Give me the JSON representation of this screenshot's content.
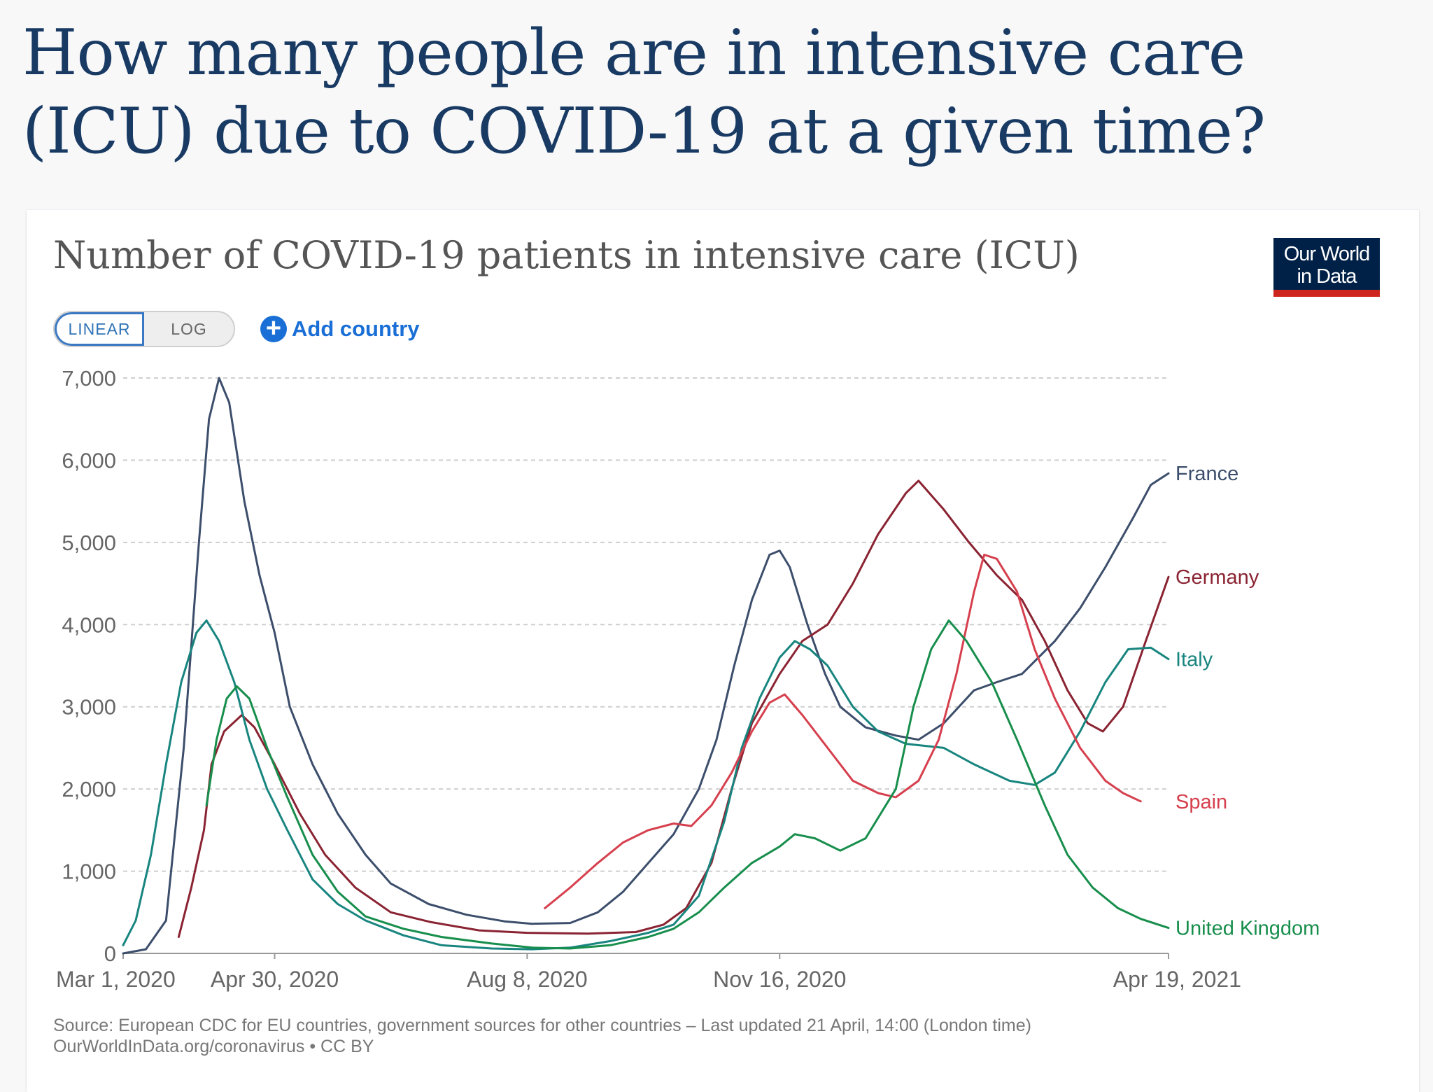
{
  "page": {
    "headline": "How many people are in intensive care (ICU) due to COVID-19 at a given time?"
  },
  "card": {
    "title": "Number of COVID-19 patients in intensive care (ICU)",
    "logo_line1": "Our World",
    "logo_line2": "in Data",
    "logo_bg": "#002147",
    "logo_accent": "#ce261e",
    "scale_options": [
      "LINEAR",
      "LOG"
    ],
    "scale_selected": "LINEAR",
    "add_country_label": "Add country",
    "add_country_icon": "plus-circle-icon",
    "source_line1": "Source: European CDC for EU countries, government sources for other countries – Last updated 21 April, 14:00 (London time)",
    "source_line2": "OurWorldInData.org/coronavirus • CC BY"
  },
  "chart_data": {
    "type": "line",
    "title": "Number of COVID-19 patients in intensive care (ICU)",
    "xlabel": "",
    "ylabel": "",
    "ylim": [
      0,
      7000
    ],
    "yticks": [
      0,
      1000,
      2000,
      3000,
      4000,
      5000,
      6000,
      7000
    ],
    "ytick_labels": [
      "0",
      "1,000",
      "2,000",
      "3,000",
      "4,000",
      "5,000",
      "6,000",
      "7,000"
    ],
    "xlim": [
      "2020-03-01",
      "2021-04-19"
    ],
    "xticks": [
      "2020-03-01",
      "2020-04-30",
      "2020-08-08",
      "2020-11-16",
      "2021-04-19"
    ],
    "xtick_labels": [
      "Mar 1, 2020",
      "Apr 30, 2020",
      "Aug 8, 2020",
      "Nov 16, 2020",
      "Apr 19, 2021"
    ],
    "grid": "horizontal dashed",
    "legend": "inline labels at line ends (right)",
    "series": [
      {
        "name": "France",
        "color": "#3c4e6b",
        "label_value": 5840,
        "points": [
          [
            "2020-03-01",
            0
          ],
          [
            "2020-03-10",
            50
          ],
          [
            "2020-03-18",
            400
          ],
          [
            "2020-03-25",
            2500
          ],
          [
            "2020-03-31",
            5000
          ],
          [
            "2020-04-04",
            6500
          ],
          [
            "2020-04-08",
            7000
          ],
          [
            "2020-04-12",
            6700
          ],
          [
            "2020-04-18",
            5500
          ],
          [
            "2020-04-24",
            4600
          ],
          [
            "2020-04-30",
            3900
          ],
          [
            "2020-05-06",
            3000
          ],
          [
            "2020-05-15",
            2300
          ],
          [
            "2020-05-25",
            1700
          ],
          [
            "2020-06-05",
            1200
          ],
          [
            "2020-06-15",
            850
          ],
          [
            "2020-06-30",
            600
          ],
          [
            "2020-07-15",
            470
          ],
          [
            "2020-07-30",
            390
          ],
          [
            "2020-08-10",
            360
          ],
          [
            "2020-08-25",
            370
          ],
          [
            "2020-09-05",
            500
          ],
          [
            "2020-09-15",
            750
          ],
          [
            "2020-09-25",
            1100
          ],
          [
            "2020-10-05",
            1450
          ],
          [
            "2020-10-15",
            2000
          ],
          [
            "2020-10-22",
            2600
          ],
          [
            "2020-10-29",
            3500
          ],
          [
            "2020-11-05",
            4300
          ],
          [
            "2020-11-12",
            4850
          ],
          [
            "2020-11-16",
            4900
          ],
          [
            "2020-11-20",
            4700
          ],
          [
            "2020-11-27",
            4000
          ],
          [
            "2020-12-04",
            3400
          ],
          [
            "2020-12-10",
            3000
          ],
          [
            "2020-12-20",
            2750
          ],
          [
            "2021-01-01",
            2650
          ],
          [
            "2021-01-10",
            2600
          ],
          [
            "2021-01-20",
            2800
          ],
          [
            "2021-02-01",
            3200
          ],
          [
            "2021-02-10",
            3300
          ],
          [
            "2021-02-20",
            3400
          ],
          [
            "2021-03-05",
            3800
          ],
          [
            "2021-03-15",
            4200
          ],
          [
            "2021-03-25",
            4700
          ],
          [
            "2021-04-05",
            5300
          ],
          [
            "2021-04-12",
            5700
          ],
          [
            "2021-04-19",
            5840
          ]
        ]
      },
      {
        "name": "Germany",
        "color": "#8a2332",
        "label_value": 4580,
        "points": [
          [
            "2020-03-23",
            200
          ],
          [
            "2020-03-28",
            800
          ],
          [
            "2020-04-02",
            1500
          ],
          [
            "2020-04-05",
            2300
          ],
          [
            "2020-04-10",
            2700
          ],
          [
            "2020-04-17",
            2900
          ],
          [
            "2020-04-22",
            2750
          ],
          [
            "2020-04-30",
            2300
          ],
          [
            "2020-05-10",
            1700
          ],
          [
            "2020-05-20",
            1200
          ],
          [
            "2020-06-01",
            800
          ],
          [
            "2020-06-15",
            500
          ],
          [
            "2020-07-01",
            380
          ],
          [
            "2020-07-20",
            280
          ],
          [
            "2020-08-08",
            250
          ],
          [
            "2020-09-01",
            240
          ],
          [
            "2020-09-20",
            260
          ],
          [
            "2020-10-01",
            350
          ],
          [
            "2020-10-10",
            550
          ],
          [
            "2020-10-20",
            1100
          ],
          [
            "2020-10-28",
            2000
          ],
          [
            "2020-11-05",
            2800
          ],
          [
            "2020-11-16",
            3400
          ],
          [
            "2020-11-25",
            3800
          ],
          [
            "2020-12-05",
            4000
          ],
          [
            "2020-12-15",
            4500
          ],
          [
            "2020-12-25",
            5100
          ],
          [
            "2021-01-05",
            5600
          ],
          [
            "2021-01-10",
            5750
          ],
          [
            "2021-01-20",
            5400
          ],
          [
            "2021-01-30",
            5000
          ],
          [
            "2021-02-10",
            4600
          ],
          [
            "2021-02-20",
            4300
          ],
          [
            "2021-03-01",
            3800
          ],
          [
            "2021-03-10",
            3200
          ],
          [
            "2021-03-18",
            2800
          ],
          [
            "2021-03-24",
            2700
          ],
          [
            "2021-04-01",
            3000
          ],
          [
            "2021-04-10",
            3800
          ],
          [
            "2021-04-19",
            4580
          ]
        ]
      },
      {
        "name": "Italy",
        "color": "#18857f",
        "label_value": 3580,
        "points": [
          [
            "2020-03-01",
            100
          ],
          [
            "2020-03-06",
            400
          ],
          [
            "2020-03-12",
            1200
          ],
          [
            "2020-03-18",
            2300
          ],
          [
            "2020-03-24",
            3300
          ],
          [
            "2020-03-30",
            3900
          ],
          [
            "2020-04-03",
            4050
          ],
          [
            "2020-04-08",
            3800
          ],
          [
            "2020-04-14",
            3300
          ],
          [
            "2020-04-20",
            2600
          ],
          [
            "2020-04-27",
            2000
          ],
          [
            "2020-05-05",
            1500
          ],
          [
            "2020-05-15",
            900
          ],
          [
            "2020-05-25",
            600
          ],
          [
            "2020-06-05",
            400
          ],
          [
            "2020-06-20",
            220
          ],
          [
            "2020-07-05",
            100
          ],
          [
            "2020-07-25",
            60
          ],
          [
            "2020-08-10",
            50
          ],
          [
            "2020-08-25",
            70
          ],
          [
            "2020-09-10",
            150
          ],
          [
            "2020-09-25",
            250
          ],
          [
            "2020-10-05",
            350
          ],
          [
            "2020-10-15",
            700
          ],
          [
            "2020-10-25",
            1600
          ],
          [
            "2020-11-01",
            2500
          ],
          [
            "2020-11-08",
            3100
          ],
          [
            "2020-11-16",
            3600
          ],
          [
            "2020-11-22",
            3800
          ],
          [
            "2020-11-28",
            3700
          ],
          [
            "2020-12-05",
            3500
          ],
          [
            "2020-12-15",
            3000
          ],
          [
            "2020-12-25",
            2700
          ],
          [
            "2021-01-05",
            2550
          ],
          [
            "2021-01-20",
            2500
          ],
          [
            "2021-02-01",
            2300
          ],
          [
            "2021-02-15",
            2100
          ],
          [
            "2021-02-25",
            2050
          ],
          [
            "2021-03-05",
            2200
          ],
          [
            "2021-03-15",
            2700
          ],
          [
            "2021-03-25",
            3300
          ],
          [
            "2021-04-03",
            3700
          ],
          [
            "2021-04-12",
            3720
          ],
          [
            "2021-04-19",
            3580
          ]
        ]
      },
      {
        "name": "Spain",
        "color": "#d6404e",
        "label_value": 1850,
        "points": [
          [
            "2020-08-15",
            550
          ],
          [
            "2020-08-25",
            800
          ],
          [
            "2020-09-05",
            1100
          ],
          [
            "2020-09-15",
            1350
          ],
          [
            "2020-09-25",
            1500
          ],
          [
            "2020-10-05",
            1580
          ],
          [
            "2020-10-12",
            1550
          ],
          [
            "2020-10-20",
            1800
          ],
          [
            "2020-10-28",
            2200
          ],
          [
            "2020-11-05",
            2700
          ],
          [
            "2020-11-12",
            3050
          ],
          [
            "2020-11-18",
            3150
          ],
          [
            "2020-11-25",
            2900
          ],
          [
            "2020-12-05",
            2500
          ],
          [
            "2020-12-15",
            2100
          ],
          [
            "2020-12-25",
            1950
          ],
          [
            "2021-01-01",
            1900
          ],
          [
            "2021-01-10",
            2100
          ],
          [
            "2021-01-18",
            2600
          ],
          [
            "2021-01-25",
            3400
          ],
          [
            "2021-02-01",
            4400
          ],
          [
            "2021-02-05",
            4850
          ],
          [
            "2021-02-10",
            4800
          ],
          [
            "2021-02-18",
            4400
          ],
          [
            "2021-02-25",
            3700
          ],
          [
            "2021-03-05",
            3100
          ],
          [
            "2021-03-15",
            2500
          ],
          [
            "2021-03-25",
            2100
          ],
          [
            "2021-04-01",
            1950
          ],
          [
            "2021-04-08",
            1850
          ]
        ]
      },
      {
        "name": "United Kingdom",
        "color": "#178e4c",
        "label_value": 310,
        "points": [
          [
            "2020-04-03",
            1800
          ],
          [
            "2020-04-07",
            2600
          ],
          [
            "2020-04-11",
            3100
          ],
          [
            "2020-04-15",
            3250
          ],
          [
            "2020-04-20",
            3100
          ],
          [
            "2020-04-27",
            2500
          ],
          [
            "2020-05-05",
            1900
          ],
          [
            "2020-05-15",
            1200
          ],
          [
            "2020-05-25",
            750
          ],
          [
            "2020-06-05",
            450
          ],
          [
            "2020-06-20",
            300
          ],
          [
            "2020-07-05",
            200
          ],
          [
            "2020-07-25",
            120
          ],
          [
            "2020-08-10",
            70
          ],
          [
            "2020-08-25",
            60
          ],
          [
            "2020-09-10",
            100
          ],
          [
            "2020-09-25",
            200
          ],
          [
            "2020-10-05",
            300
          ],
          [
            "2020-10-15",
            500
          ],
          [
            "2020-10-25",
            800
          ],
          [
            "2020-11-05",
            1100
          ],
          [
            "2020-11-16",
            1300
          ],
          [
            "2020-11-22",
            1450
          ],
          [
            "2020-11-30",
            1400
          ],
          [
            "2020-12-10",
            1250
          ],
          [
            "2020-12-20",
            1400
          ],
          [
            "2021-01-01",
            2000
          ],
          [
            "2021-01-08",
            3000
          ],
          [
            "2021-01-15",
            3700
          ],
          [
            "2021-01-22",
            4050
          ],
          [
            "2021-01-29",
            3800
          ],
          [
            "2021-02-08",
            3300
          ],
          [
            "2021-02-18",
            2600
          ],
          [
            "2021-03-01",
            1800
          ],
          [
            "2021-03-10",
            1200
          ],
          [
            "2021-03-20",
            800
          ],
          [
            "2021-03-30",
            550
          ],
          [
            "2021-04-08",
            420
          ],
          [
            "2021-04-19",
            310
          ]
        ]
      }
    ]
  }
}
